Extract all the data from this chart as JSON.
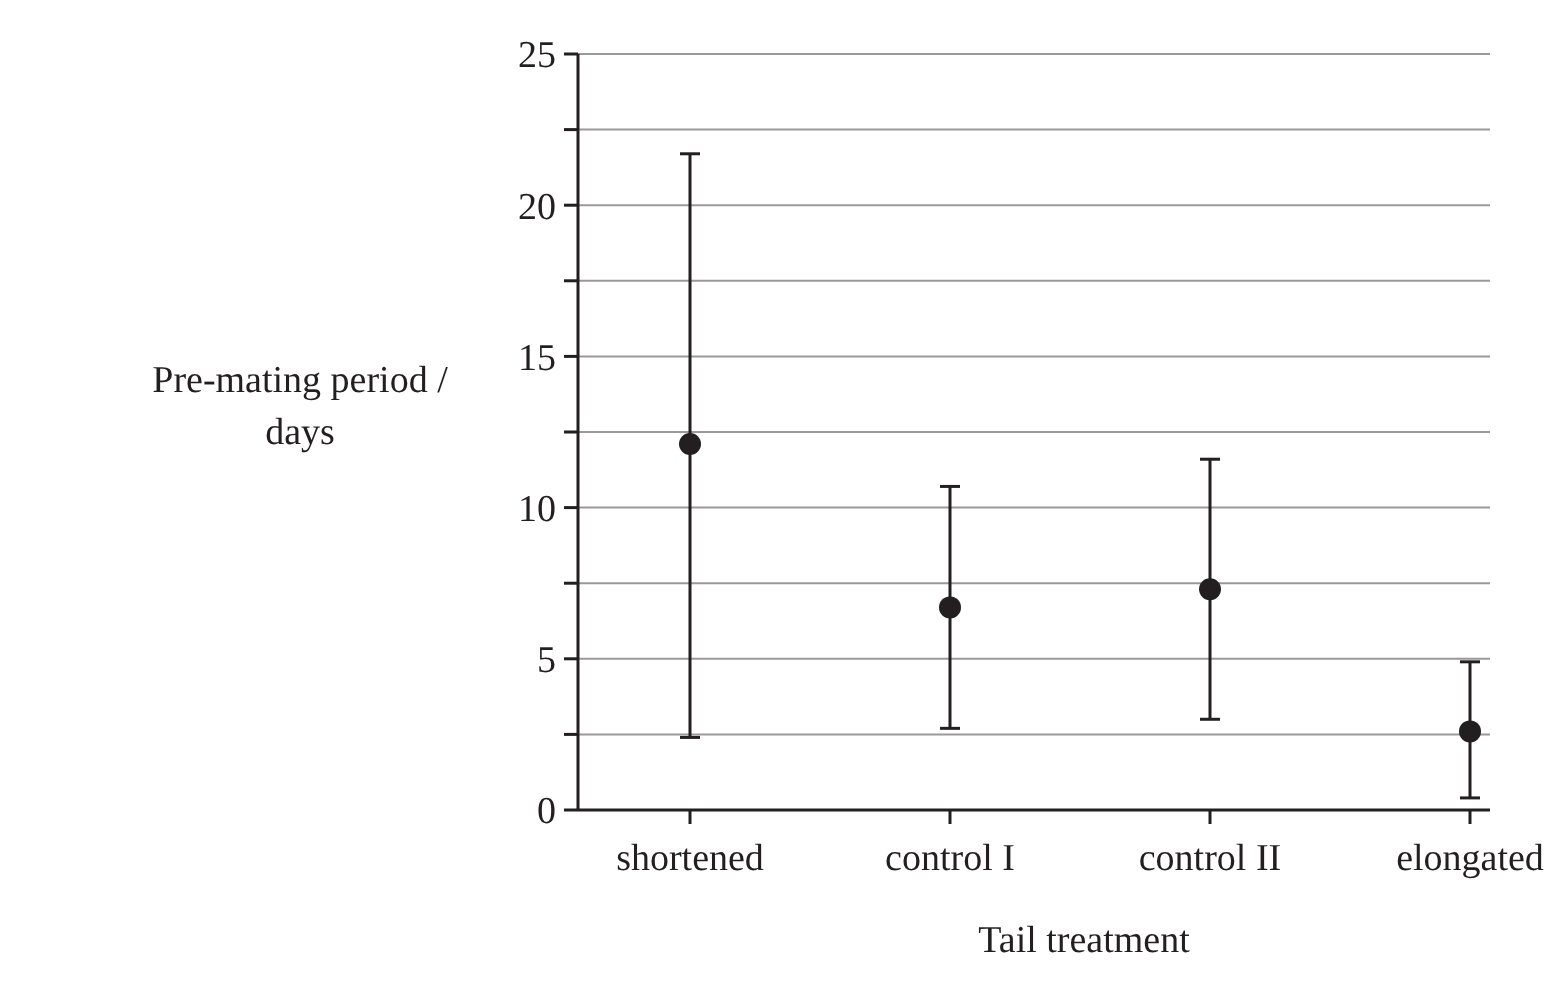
{
  "chart_data": {
    "type": "scatter",
    "xlabel": "Tail treatment",
    "ylabel": "Pre-mating period / days",
    "categories": [
      "shortened",
      "control I",
      "control II",
      "elongated"
    ],
    "values": [
      12.1,
      6.7,
      7.3,
      2.6
    ],
    "errors": [
      [
        2.4,
        21.7
      ],
      [
        2.7,
        10.7
      ],
      [
        3.0,
        11.6
      ],
      [
        0.4,
        4.9
      ]
    ],
    "color": "#231f20",
    "marker": "circle",
    "grid": "y",
    "ylim": [
      0,
      25
    ],
    "yticks": [
      0,
      {
        "value": 2.5,
        "label": null
      },
      5,
      {
        "value": 7.5,
        "label": null
      },
      10,
      {
        "value": 12.5,
        "label": null
      },
      15,
      {
        "value": 17.5,
        "label": null
      },
      20,
      {
        "value": 22.5,
        "label": null
      },
      25
    ]
  }
}
